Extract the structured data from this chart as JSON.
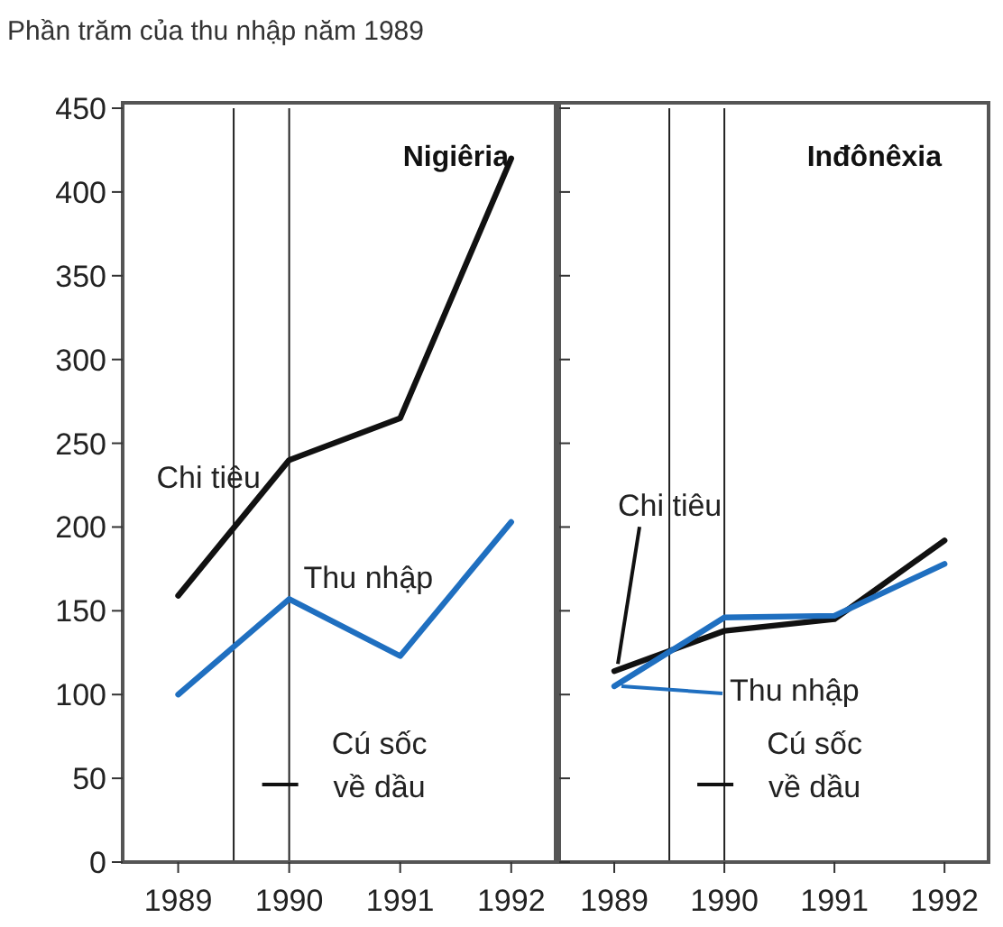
{
  "chart_data": [
    {
      "type": "line",
      "title": "Nigiêria",
      "ylabel": "Phần trăm của thu nhập năm 1989",
      "x": [
        1989,
        1990,
        1991,
        1992
      ],
      "xlim": [
        1988.5,
        1992.4
      ],
      "xticks": [
        1989,
        1990,
        1991,
        1992
      ],
      "ylim": [
        0,
        450
      ],
      "yticks": [
        0,
        50,
        100,
        150,
        200,
        250,
        300,
        350,
        400,
        450
      ],
      "marker": "none",
      "grid": false,
      "series": [
        {
          "name": "Chi tiêu",
          "color": "#111111",
          "values": [
            159,
            240,
            265,
            420
          ]
        },
        {
          "name": "Thu nhập",
          "color": "#1f6fc0",
          "values": [
            100,
            157,
            123,
            203
          ]
        }
      ],
      "ref_lines": [
        {
          "axis": "x",
          "value": 1989.5,
          "color": "#222222"
        },
        {
          "axis": "x",
          "value": 1990,
          "label": "Cú sốc về dầu",
          "color": "#222222"
        }
      ]
    },
    {
      "type": "line",
      "title": "Inđônêxia",
      "x": [
        1989,
        1990,
        1991,
        1992
      ],
      "xlim": [
        1988.5,
        1992.4
      ],
      "xticks": [
        1989,
        1990,
        1991,
        1992
      ],
      "ylim": [
        0,
        450
      ],
      "yticks": [
        0,
        50,
        100,
        150,
        200,
        250,
        300,
        350,
        400,
        450
      ],
      "tick_labels": "x",
      "marker": "none",
      "grid": false,
      "series": [
        {
          "name": "Chi tiêu",
          "color": "#111111",
          "values": [
            114,
            138,
            145,
            192
          ]
        },
        {
          "name": "Thu nhập",
          "color": "#1f6fc0",
          "values": [
            105,
            146,
            147,
            178
          ]
        }
      ],
      "ref_lines": [
        {
          "axis": "x",
          "value": 1989.5,
          "color": "#222222"
        },
        {
          "axis": "x",
          "value": 1990,
          "label": "Cú sốc về dầu",
          "color": "#222222"
        }
      ]
    }
  ]
}
